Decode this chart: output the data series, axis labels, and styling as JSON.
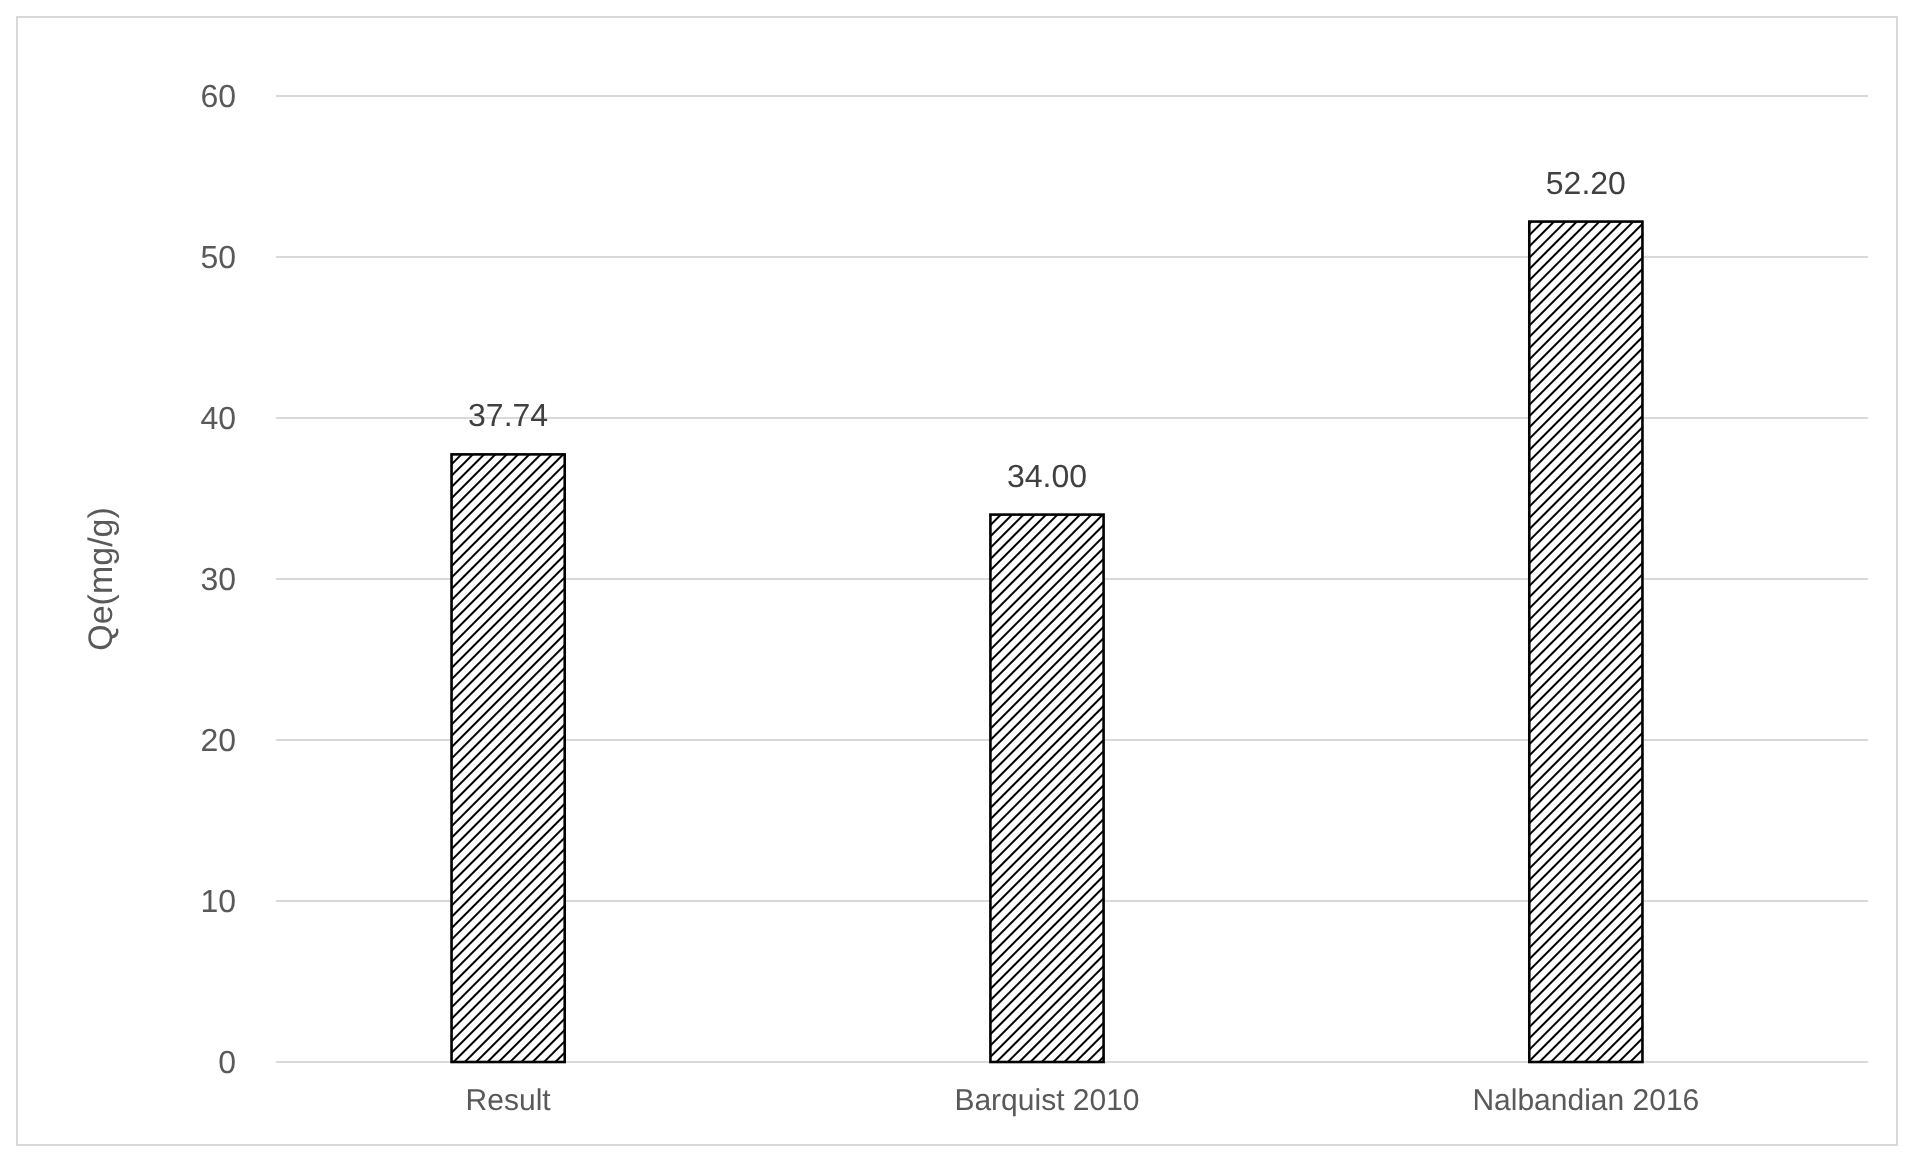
{
  "chart_data": {
    "type": "bar",
    "ylabel": "Qe(mg/g)",
    "categories": [
      "Result",
      "Barquist 2010",
      "Nalbandian 2016"
    ],
    "values": [
      37.74,
      34.0,
      52.2
    ],
    "value_labels": [
      "37.74",
      "34.00",
      "52.20"
    ],
    "color": "#000000",
    "ylim": [
      0,
      60
    ],
    "yticks": [
      0,
      10,
      20,
      30,
      40,
      50,
      60
    ],
    "grid": "y"
  }
}
